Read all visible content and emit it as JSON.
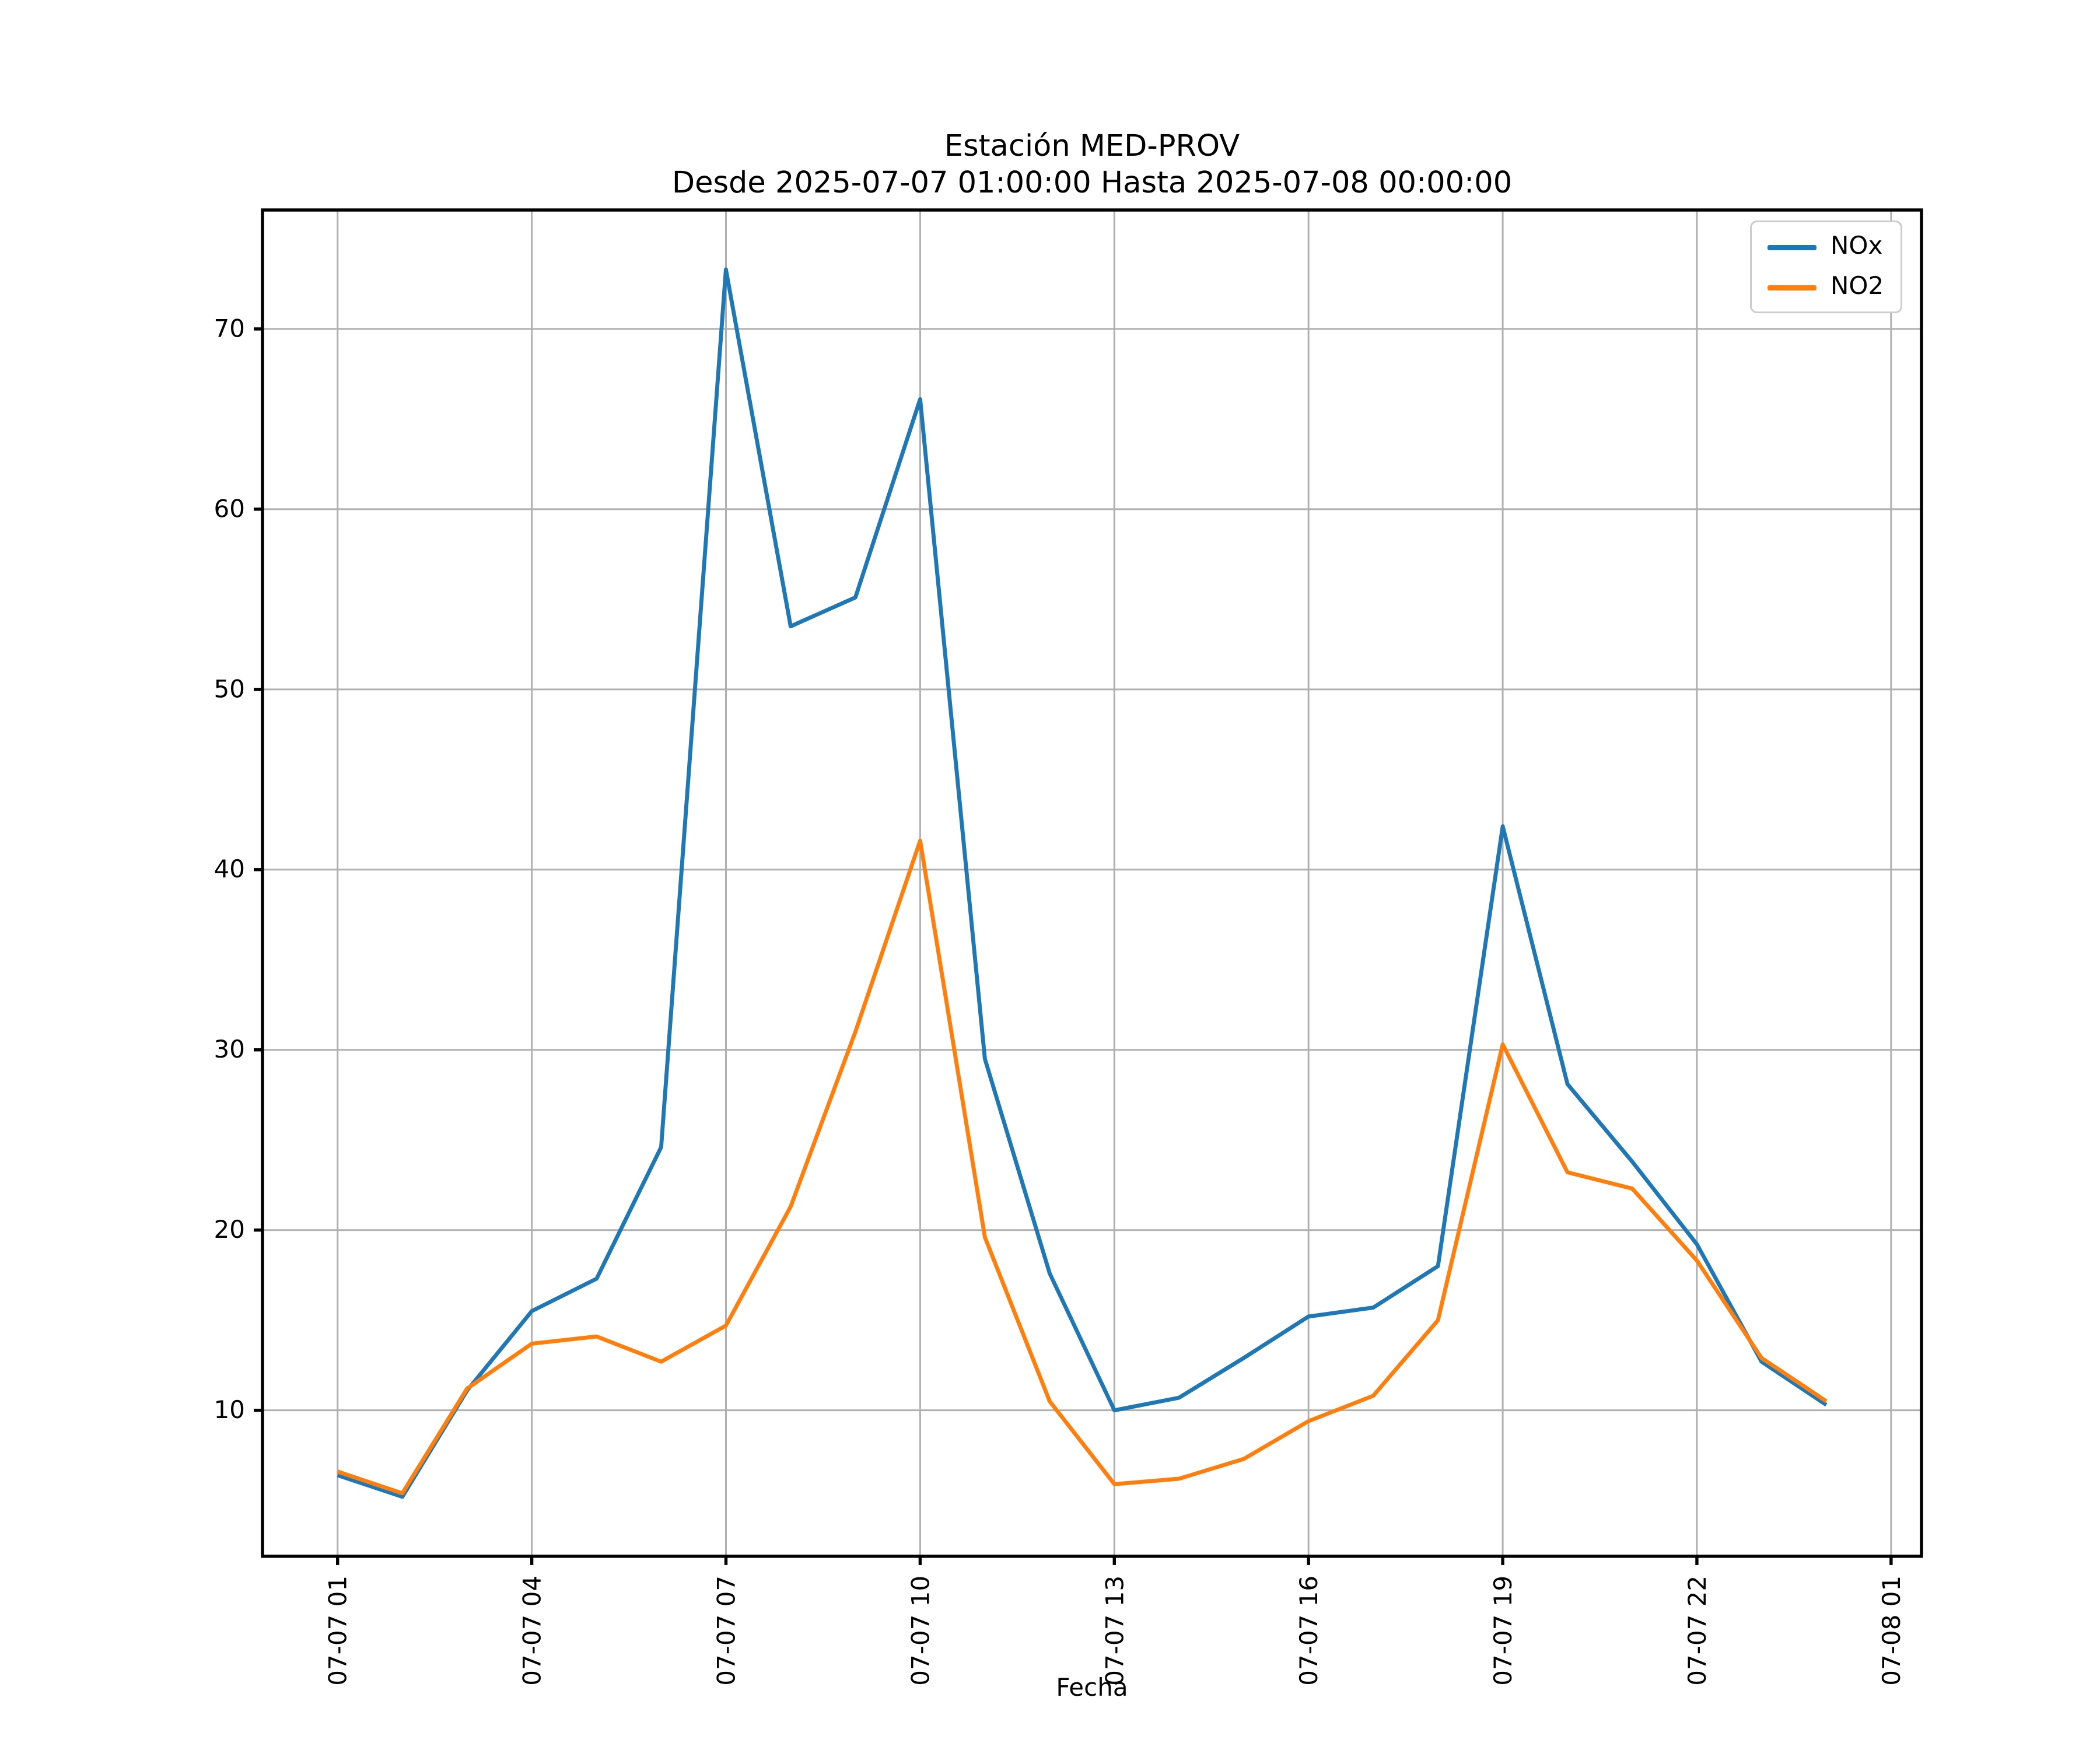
{
  "chart_data": {
    "type": "line",
    "title": "Estación MED-PROV",
    "subtitle": "Desde 2025-07-07 01:00:00 Hasta 2025-07-08 00:00:00",
    "xlabel": "Fecha",
    "ylabel": "",
    "grid": true,
    "legend": {
      "position": "upper right",
      "entries": [
        "NOx",
        "NO2"
      ]
    },
    "x_tick_labels": [
      "07-07 01",
      "07-07 04",
      "07-07 07",
      "07-07 10",
      "07-07 13",
      "07-07 16",
      "07-07 19",
      "07-07 22",
      "07-08 01"
    ],
    "x_tick_hours": [
      1,
      4,
      7,
      10,
      13,
      16,
      19,
      22,
      25
    ],
    "x_times": [
      "2025-07-07 01:00",
      "2025-07-07 02:00",
      "2025-07-07 03:00",
      "2025-07-07 04:00",
      "2025-07-07 05:00",
      "2025-07-07 06:00",
      "2025-07-07 07:00",
      "2025-07-07 08:00",
      "2025-07-07 09:00",
      "2025-07-07 10:00",
      "2025-07-07 11:00",
      "2025-07-07 12:00",
      "2025-07-07 13:00",
      "2025-07-07 14:00",
      "2025-07-07 15:00",
      "2025-07-07 16:00",
      "2025-07-07 17:00",
      "2025-07-07 18:00",
      "2025-07-07 19:00",
      "2025-07-07 20:00",
      "2025-07-07 21:00",
      "2025-07-07 22:00",
      "2025-07-07 23:00",
      "2025-07-08 00:00"
    ],
    "x_hours": [
      1,
      2,
      3,
      4,
      5,
      6,
      7,
      8,
      9,
      10,
      11,
      12,
      13,
      14,
      15,
      16,
      17,
      18,
      19,
      20,
      21,
      22,
      23,
      24
    ],
    "y_ticks": [
      10,
      20,
      30,
      40,
      50,
      60,
      70
    ],
    "ylim": [
      1.9,
      76.6
    ],
    "xlim_hours": [
      -0.16,
      25.47
    ],
    "colors": {
      "grid": "#b0b0b0",
      "axis": "#000000",
      "background": "#ffffff"
    },
    "series": [
      {
        "name": "NOx",
        "color": "#1f77b4",
        "values": [
          6.4,
          5.2,
          11.1,
          15.5,
          17.3,
          24.6,
          73.3,
          53.5,
          55.1,
          66.1,
          29.5,
          17.6,
          10.0,
          10.7,
          12.9,
          15.2,
          15.7,
          18.0,
          42.4,
          28.1,
          23.8,
          19.2,
          12.7,
          10.3
        ]
      },
      {
        "name": "NO2",
        "color": "#ff7f0e",
        "values": [
          6.6,
          5.4,
          11.2,
          13.7,
          14.1,
          12.7,
          14.7,
          21.3,
          31.0,
          41.6,
          19.6,
          10.5,
          5.9,
          6.2,
          7.3,
          9.4,
          10.8,
          15.0,
          30.3,
          23.2,
          22.3,
          18.3,
          12.9,
          10.5
        ]
      }
    ]
  }
}
